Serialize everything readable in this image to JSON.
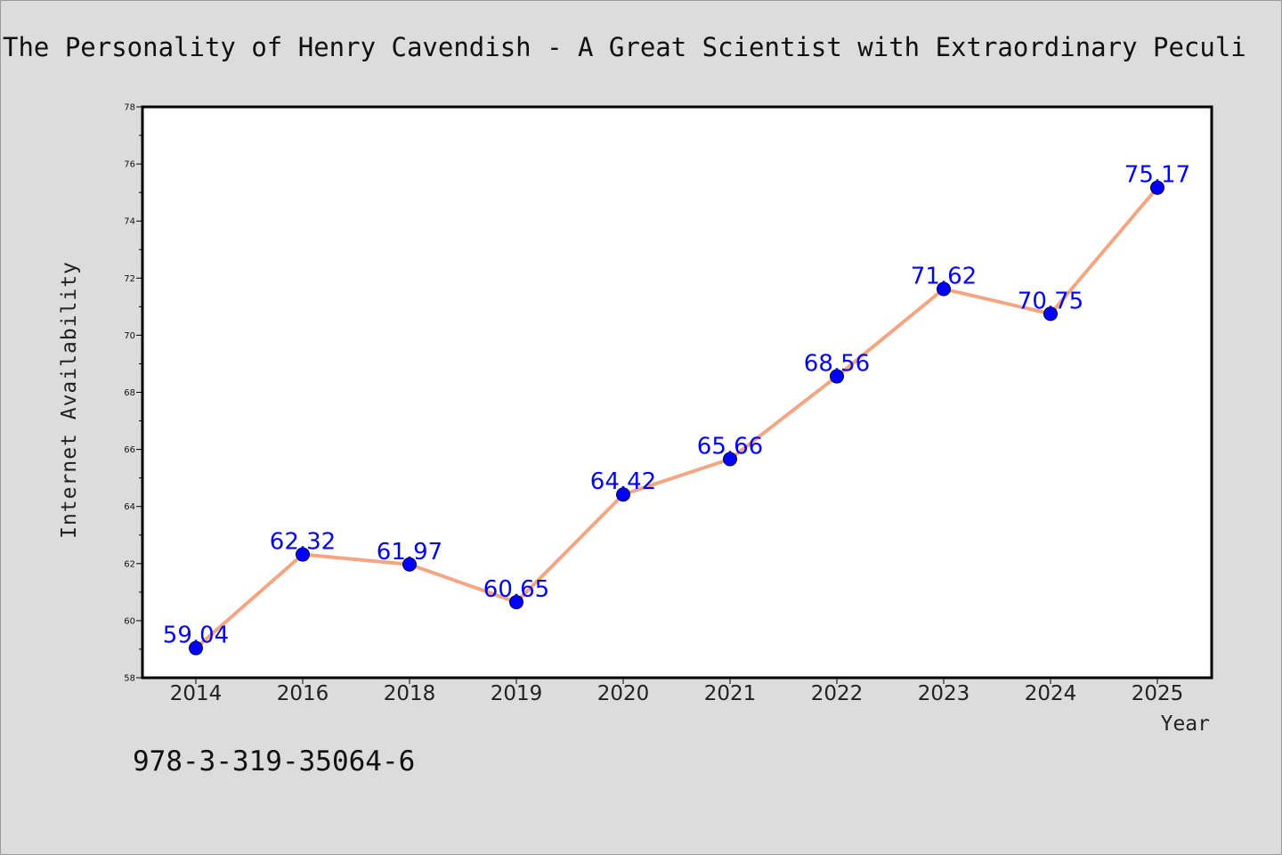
{
  "chart_data": {
    "type": "line",
    "title": "The Personality of Henry Cavendish - A Great Scientist with Extraordinary Peculi",
    "xlabel": "Year",
    "ylabel": "Internet Availability",
    "categories": [
      "2014",
      "2016",
      "2018",
      "2019",
      "2020",
      "2021",
      "2022",
      "2023",
      "2024",
      "2025"
    ],
    "series": [
      {
        "values": [
          59.04,
          62.32,
          61.97,
          60.65,
          64.42,
          65.66,
          68.56,
          71.62,
          70.75,
          75.17
        ],
        "data_labels": [
          "59.04",
          "62.32",
          "61.97",
          "60.65",
          "64.42",
          "65.66",
          "68.56",
          "71.62",
          "70.75",
          "75.17"
        ]
      }
    ],
    "ylim": [
      58,
      78
    ],
    "yticks": [
      "58",
      "60",
      "62",
      "64",
      "66",
      "68",
      "70",
      "72",
      "74",
      "76",
      "78"
    ],
    "grid": false,
    "line_color": "#f4a582",
    "marker_color": "#0000ff",
    "label_color": "#0000ff",
    "background_color": "#dcdcdc",
    "plot_background_color": "#ffffff"
  },
  "footer": {
    "isbn": "978-3-319-35064-6"
  }
}
